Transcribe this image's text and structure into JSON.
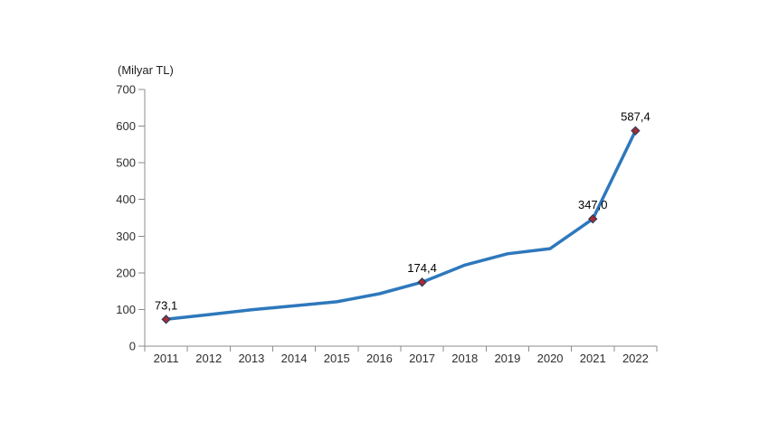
{
  "chart_data": {
    "type": "line",
    "title": "",
    "unit_label": "(Milyar TL)",
    "xlabel": "",
    "ylabel": "(Milyar TL)",
    "categories": [
      "2011",
      "2012",
      "2013",
      "2014",
      "2015",
      "2016",
      "2017",
      "2018",
      "2019",
      "2020",
      "2021",
      "2022"
    ],
    "series": [
      {
        "name": "Milyar TL",
        "values": [
          73.1,
          86,
          99,
          110,
          121,
          143,
          174.4,
          221,
          252,
          266,
          347.0,
          587.4
        ]
      }
    ],
    "point_labels": [
      {
        "category": "2011",
        "value": 73.1,
        "label": "73,1"
      },
      {
        "category": "2017",
        "value": 174.4,
        "label": "174,4"
      },
      {
        "category": "2021",
        "value": 347.0,
        "label": "347,0"
      },
      {
        "category": "2022",
        "value": 587.4,
        "label": "587,4"
      }
    ],
    "ylim": [
      0,
      700
    ],
    "ytick_step": 100,
    "ytick_labels": [
      "0",
      "100",
      "200",
      "300",
      "400",
      "500",
      "600",
      "700"
    ],
    "grid": false,
    "legend": "none",
    "colors": {
      "line": "#2e78bc",
      "marker_fill": "#a12c33",
      "marker_stroke": "#223a5e",
      "axis": "#8c8c8c",
      "tick_label": "#2e2e2e",
      "data_label": "#000000"
    }
  }
}
